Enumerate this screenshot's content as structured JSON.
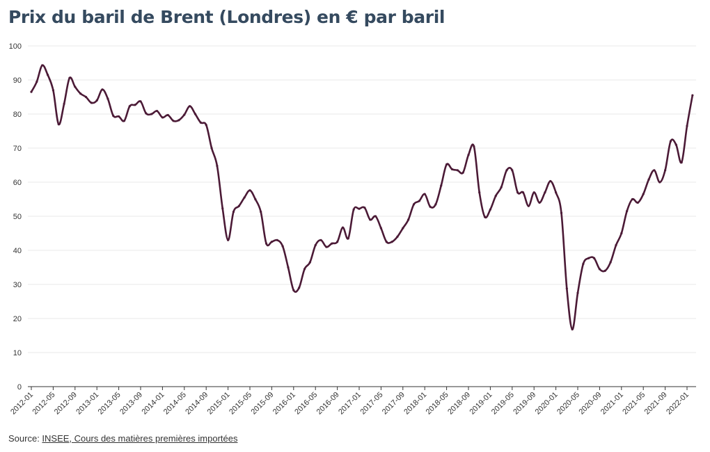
{
  "header": {
    "title": "Prix du baril de Brent (Londres) en € par baril"
  },
  "source": {
    "prefix": "Source: ",
    "link_text": "INSEE, Cours des matières premières importées"
  },
  "colors": {
    "line": "#4b1a36",
    "title": "#354a5f",
    "grid": "#e8e8e8"
  },
  "chart_data": {
    "type": "line",
    "title": "Prix du baril de Brent (Londres) en € par baril",
    "xlabel": "",
    "ylabel": "",
    "ylim": [
      0,
      100
    ],
    "yticks": [
      0,
      10,
      20,
      30,
      40,
      50,
      60,
      70,
      80,
      90,
      100
    ],
    "xticks": [
      "2012-01",
      "2012-05",
      "2012-09",
      "2013-01",
      "2013-05",
      "2013-09",
      "2014-01",
      "2014-05",
      "2014-09",
      "2015-01",
      "2015-05",
      "2015-09",
      "2016-01",
      "2016-05",
      "2016-09",
      "2017-01",
      "2017-05",
      "2017-09",
      "2018-01",
      "2018-05",
      "2018-09",
      "2019-01",
      "2019-05",
      "2019-09",
      "2020-01",
      "2020-05",
      "2020-09",
      "2021-01",
      "2021-05",
      "2021-09",
      "2022-01"
    ],
    "grid": true,
    "legend": "none",
    "x_start": "2012-01",
    "x_step": "1 month",
    "series": [
      {
        "values": [
          86.5,
          89.5,
          94.3,
          91.5,
          87.0,
          77.0,
          83.0,
          90.6,
          88.0,
          86.0,
          85.0,
          83.3,
          84.0,
          87.2,
          84.5,
          79.5,
          79.3,
          78.0,
          82.3,
          82.7,
          83.7,
          80.2,
          80.0,
          80.9,
          79.0,
          79.7,
          78.0,
          78.2,
          79.8,
          82.3,
          80.0,
          77.5,
          76.8,
          70.0,
          64.8,
          52.3,
          43.0,
          51.3,
          53.0,
          55.5,
          57.6,
          55.0,
          51.3,
          42.0,
          42.5,
          43.0,
          41.2,
          35.0,
          28.3,
          29.0,
          34.5,
          36.5,
          41.5,
          43.0,
          41.0,
          42.0,
          42.5,
          46.7,
          43.5,
          52.0,
          52.2,
          52.5,
          49.0,
          50.0,
          46.5,
          42.5,
          42.5,
          44.0,
          46.5,
          49.0,
          53.5,
          54.5,
          56.5,
          52.8,
          53.5,
          59.0,
          65.2,
          63.8,
          63.5,
          62.8,
          68.0,
          70.5,
          57.0,
          49.8,
          52.0,
          56.0,
          58.5,
          63.5,
          63.5,
          57.0,
          57.0,
          53.0,
          57.0,
          54.0,
          57.0,
          60.3,
          57.0,
          51.0,
          28.8,
          16.8,
          27.5,
          36.0,
          37.7,
          37.7,
          34.5,
          34.0,
          36.5,
          41.5,
          45.0,
          51.5,
          55.0,
          54.0,
          56.5,
          60.8,
          63.5,
          60.0,
          63.5,
          72.0,
          71.0,
          65.8,
          76.5,
          85.5
        ]
      }
    ]
  }
}
